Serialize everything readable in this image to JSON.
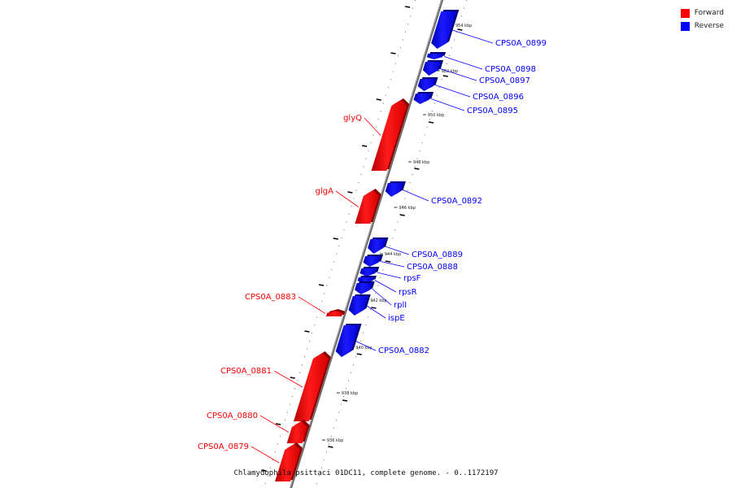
{
  "legend": {
    "forward_label": "Forward",
    "reverse_label": "Reverse",
    "forward_color": "#ff0000",
    "reverse_color": "#0000ff"
  },
  "caption": "Chlamydophila psittaci 01DC11, complete genome. - 0..1172197",
  "scale_labels": [
    "936 kbp",
    "938 kbp",
    "940 kbp",
    "942 kbp",
    "944 kbp",
    "946 kbp",
    "948 kbp",
    "950 kbp",
    "952 kbp",
    "954 kbp"
  ],
  "genes": [
    {
      "name": "CPS0A_0899",
      "strand": "reverse"
    },
    {
      "name": "CPS0A_0898",
      "strand": "reverse"
    },
    {
      "name": "CPS0A_0897",
      "strand": "reverse"
    },
    {
      "name": "CPS0A_0896",
      "strand": "reverse"
    },
    {
      "name": "CPS0A_0895",
      "strand": "reverse"
    },
    {
      "name": "glyQ",
      "strand": "forward"
    },
    {
      "name": "glgA",
      "strand": "forward"
    },
    {
      "name": "CPS0A_0892",
      "strand": "reverse"
    },
    {
      "name": "CPS0A_0889",
      "strand": "reverse"
    },
    {
      "name": "CPS0A_0888",
      "strand": "reverse"
    },
    {
      "name": "rpsF",
      "strand": "reverse"
    },
    {
      "name": "rpsR",
      "strand": "reverse"
    },
    {
      "name": "rplI",
      "strand": "reverse"
    },
    {
      "name": "ispE",
      "strand": "reverse"
    },
    {
      "name": "CPS0A_0883",
      "strand": "forward"
    },
    {
      "name": "CPS0A_0882",
      "strand": "reverse"
    },
    {
      "name": "CPS0A_0881",
      "strand": "forward"
    },
    {
      "name": "CPS0A_0880",
      "strand": "forward"
    },
    {
      "name": "CPS0A_0879",
      "strand": "forward"
    }
  ]
}
